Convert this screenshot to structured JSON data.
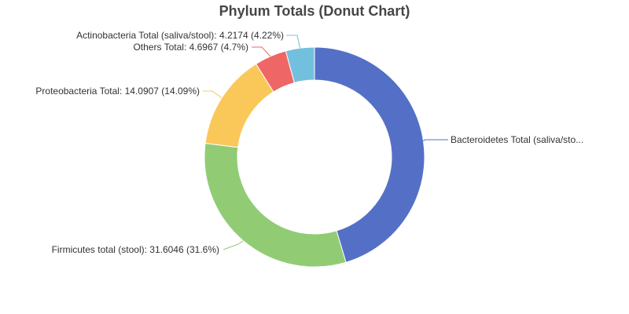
{
  "chart_data": {
    "type": "pie",
    "title": "Phylum Totals (Donut Chart)",
    "slices": [
      {
        "name": "Bacteroidetes Total (saliva/stool)",
        "value": 45.39,
        "label": "Bacteroidetes Total (saliva/sto...",
        "color": "#5470c6"
      },
      {
        "name": "Firmicutes total (stool)",
        "value": 31.6046,
        "label": "Firmicutes total (stool): 31.6046 (31.6%)",
        "color": "#91cc75"
      },
      {
        "name": "Proteobacteria Total",
        "value": 14.0907,
        "label": "Proteobacteria Total: 14.0907 (14.09%)",
        "color": "#fac858"
      },
      {
        "name": "Others Total",
        "value": 4.6967,
        "label": "Others Total: 4.6967 (4.7%)",
        "color": "#ee6666"
      },
      {
        "name": "Actinobacteria Total (saliva/stool)",
        "value": 4.2174,
        "label": "Actinobacteria Total (saliva/stool): 4.2174 (4.22%)",
        "color": "#73c0de"
      }
    ]
  }
}
